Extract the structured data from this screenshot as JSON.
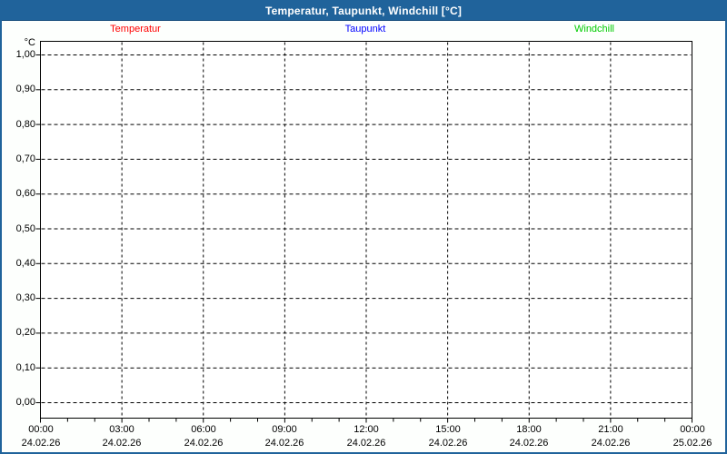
{
  "window": {
    "title": "Temperatur, Taupunkt, Windchill [°C]",
    "titlebar_color": "#20639b",
    "border_color": "#20639b"
  },
  "chart_data": {
    "type": "line",
    "title": "Temperatur, Taupunkt, Windchill [°C]",
    "legend_position": "top",
    "grid": "dashed",
    "series": [
      {
        "name": "Temperatur",
        "color": "#ff0000",
        "values": []
      },
      {
        "name": "Taupunkt",
        "color": "#0000ff",
        "values": []
      },
      {
        "name": "Windchill",
        "color": "#00cc00",
        "values": []
      }
    ],
    "y_axis": {
      "unit_label": "°C",
      "ylim": [
        0.0,
        1.0
      ],
      "tick_step": 0.1,
      "ticks": [
        "1,00",
        "0,90",
        "0,80",
        "0,70",
        "0,60",
        "0,50",
        "0,40",
        "0,30",
        "0,20",
        "0,10",
        "0,00"
      ]
    },
    "x_axis": {
      "minor_tick_hours": 1,
      "ticks": [
        {
          "time": "00:00",
          "date": "24.02.26"
        },
        {
          "time": "03:00",
          "date": "24.02.26"
        },
        {
          "time": "06:00",
          "date": "24.02.26"
        },
        {
          "time": "09:00",
          "date": "24.02.26"
        },
        {
          "time": "12:00",
          "date": "24.02.26"
        },
        {
          "time": "15:00",
          "date": "24.02.26"
        },
        {
          "time": "18:00",
          "date": "24.02.26"
        },
        {
          "time": "21:00",
          "date": "24.02.26"
        },
        {
          "time": "00:00",
          "date": "25.02.26"
        }
      ]
    }
  }
}
